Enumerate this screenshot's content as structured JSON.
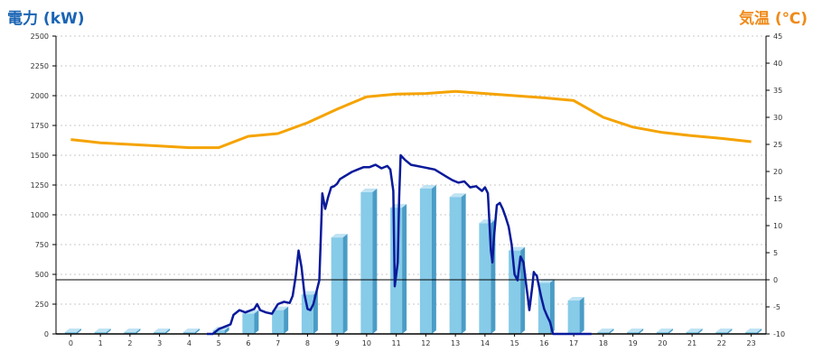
{
  "chart_data": {
    "type": "bar",
    "left_axis_title": "電力 (kW)",
    "right_axis_title": "気温 (℃)",
    "categories": [
      "0",
      "1",
      "2",
      "3",
      "4",
      "5",
      "6",
      "7",
      "8",
      "9",
      "10",
      "11",
      "12",
      "13",
      "14",
      "15",
      "16",
      "17",
      "18",
      "19",
      "20",
      "21",
      "22",
      "23"
    ],
    "ylim_left": [
      0,
      2500
    ],
    "yticks_left": [
      "0",
      "250",
      "500",
      "750",
      "1000",
      "1250",
      "1500",
      "1750",
      "2000",
      "2250",
      "2500"
    ],
    "ylim_right": [
      -10,
      45
    ],
    "yticks_right": [
      "-10",
      "-5",
      "0",
      "5",
      "10",
      "15",
      "20",
      "25",
      "30",
      "35",
      "40",
      "45"
    ],
    "grid": true,
    "zero_line_right": 0,
    "colors": {
      "bar_front": "#86cbe8",
      "bar_side": "#4a9cc6",
      "bar_top": "#bfe3f4",
      "power_line": "#0a1a9a",
      "temp_line": "#f5a300",
      "left_title": "#1a64b4",
      "right_title": "#f08a18"
    },
    "series": [
      {
        "kind": "bar",
        "axis": "left",
        "values": [
          0,
          0,
          0,
          0,
          0,
          30,
          170,
          200,
          330,
          810,
          1190,
          1060,
          1220,
          1150,
          930,
          700,
          430,
          280,
          0,
          0,
          0,
          0,
          0,
          0
        ]
      },
      {
        "kind": "line",
        "axis": "left",
        "x": [
          4.6,
          4.8,
          5.0,
          5.2,
          5.4,
          5.5,
          5.7,
          5.9,
          6.1,
          6.2,
          6.3,
          6.4,
          6.6,
          6.8,
          7.0,
          7.2,
          7.4,
          7.5,
          7.6,
          7.7,
          7.8,
          7.9,
          8.0,
          8.1,
          8.2,
          8.3,
          8.4,
          8.5,
          8.6,
          8.7,
          8.8,
          8.9,
          9.0,
          9.1,
          9.3,
          9.5,
          9.7,
          9.9,
          10.1,
          10.3,
          10.5,
          10.7,
          10.8,
          10.9,
          10.95,
          11.05,
          11.1,
          11.15,
          11.3,
          11.5,
          11.7,
          11.9,
          12.1,
          12.3,
          12.5,
          12.7,
          12.9,
          13.1,
          13.3,
          13.5,
          13.7,
          13.9,
          14.0,
          14.1,
          14.2,
          14.25,
          14.3,
          14.4,
          14.5,
          14.6,
          14.7,
          14.8,
          14.9,
          15.0,
          15.1,
          15.2,
          15.3,
          15.35,
          15.4,
          15.45,
          15.5,
          15.6,
          15.65,
          15.7,
          15.75,
          15.8,
          15.9,
          16.0,
          16.1,
          16.2,
          16.3,
          16.4,
          16.5,
          16.6,
          16.7,
          16.8,
          16.9,
          17.0,
          17.2,
          17.4,
          17.6
        ],
        "y": [
          0,
          0,
          40,
          60,
          80,
          160,
          200,
          180,
          200,
          210,
          250,
          200,
          180,
          170,
          250,
          270,
          260,
          320,
          480,
          700,
          560,
          330,
          210,
          200,
          250,
          350,
          450,
          1180,
          1050,
          1150,
          1230,
          1240,
          1260,
          1300,
          1330,
          1360,
          1380,
          1400,
          1400,
          1420,
          1390,
          1410,
          1380,
          1200,
          400,
          600,
          1150,
          1500,
          1460,
          1420,
          1410,
          1400,
          1390,
          1380,
          1350,
          1320,
          1290,
          1270,
          1280,
          1230,
          1240,
          1200,
          1230,
          1180,
          700,
          600,
          800,
          1080,
          1100,
          1050,
          980,
          900,
          750,
          500,
          450,
          650,
          600,
          500,
          400,
          300,
          200,
          400,
          520,
          500,
          490,
          430,
          310,
          210,
          150,
          100,
          0,
          0,
          0,
          0,
          0,
          0,
          0,
          0,
          0,
          0,
          0
        ]
      },
      {
        "kind": "line",
        "axis": "right",
        "x": [
          0,
          0.5,
          1,
          2,
          3,
          4,
          5,
          6,
          7,
          8,
          9,
          10,
          11,
          12,
          13,
          14,
          15,
          16,
          17,
          18,
          19,
          20,
          21,
          22,
          23
        ],
        "y": [
          25.9,
          25.6,
          25.3,
          25.0,
          24.7,
          24.4,
          24.4,
          26.5,
          27.0,
          29.0,
          31.5,
          33.8,
          34.3,
          34.4,
          34.8,
          34.4,
          34.0,
          33.6,
          33.1,
          30.0,
          28.2,
          27.2,
          26.6,
          26.1,
          25.5
        ]
      }
    ]
  }
}
